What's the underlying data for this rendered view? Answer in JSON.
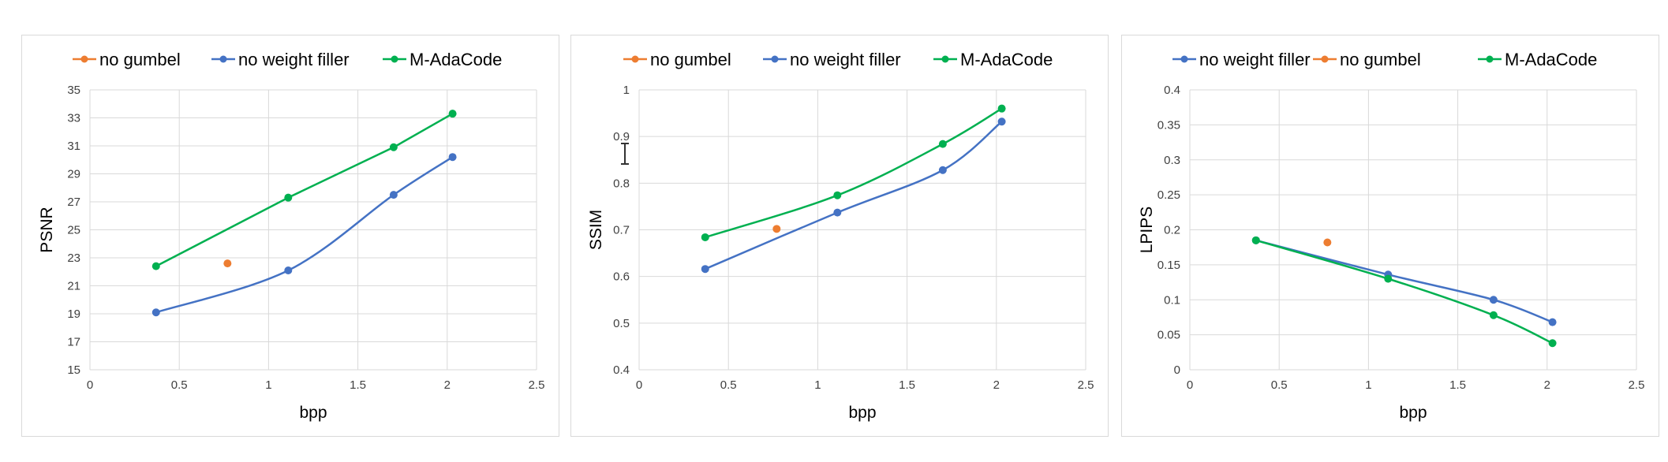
{
  "chart_data": [
    {
      "type": "line",
      "xlabel": "bpp",
      "ylabel": "PSNR",
      "xlim": [
        0,
        2.5
      ],
      "ylim": [
        15,
        35
      ],
      "xticks": [
        "0",
        "0.5",
        "1",
        "1.5",
        "2",
        "2.5"
      ],
      "yticks": [
        "15",
        "17",
        "19",
        "21",
        "23",
        "25",
        "27",
        "29",
        "31",
        "33",
        "35"
      ],
      "grid": true,
      "legend_position": "top",
      "series": [
        {
          "name": "no gumbel",
          "color": "#ED7D31",
          "smooth": false,
          "x": [
            0.77
          ],
          "y": [
            22.6
          ]
        },
        {
          "name": "no weight filler",
          "color": "#4472C4",
          "smooth": true,
          "x": [
            0.37,
            1.11,
            1.7,
            2.03
          ],
          "y": [
            19.1,
            22.1,
            27.5,
            30.2
          ]
        },
        {
          "name": "M-AdaCode",
          "color": "#00B050",
          "smooth": false,
          "x": [
            0.37,
            1.11,
            1.7,
            2.03
          ],
          "y": [
            22.4,
            27.3,
            30.9,
            33.3
          ]
        }
      ]
    },
    {
      "type": "line",
      "xlabel": "bpp",
      "ylabel": "SSIM",
      "xlim": [
        0,
        2.5
      ],
      "ylim": [
        0.4,
        1
      ],
      "xticks": [
        "0",
        "0.5",
        "1",
        "1.5",
        "2",
        "2.5"
      ],
      "yticks": [
        "0.4",
        "0.5",
        "0.6",
        "0.7",
        "0.8",
        "0.9",
        "1"
      ],
      "grid": true,
      "legend_position": "top",
      "series": [
        {
          "name": "no gumbel",
          "color": "#ED7D31",
          "smooth": false,
          "x": [
            0.77
          ],
          "y": [
            0.702
          ]
        },
        {
          "name": "no weight filler",
          "color": "#4472C4",
          "smooth": true,
          "x": [
            0.37,
            1.11,
            1.7,
            2.03
          ],
          "y": [
            0.616,
            0.737,
            0.828,
            0.932
          ]
        },
        {
          "name": "M-AdaCode",
          "color": "#00B050",
          "smooth": true,
          "x": [
            0.37,
            1.11,
            1.7,
            2.03
          ],
          "y": [
            0.684,
            0.774,
            0.884,
            0.96
          ]
        }
      ]
    },
    {
      "type": "line",
      "xlabel": "bpp",
      "ylabel": "LPIPS",
      "xlim": [
        0,
        2.5
      ],
      "ylim": [
        0,
        0.4
      ],
      "xticks": [
        "0",
        "0.5",
        "1",
        "1.5",
        "2",
        "2.5"
      ],
      "yticks": [
        "0",
        "0.05",
        "0.1",
        "0.15",
        "0.2",
        "0.25",
        "0.3",
        "0.35",
        "0.4"
      ],
      "grid": true,
      "legend_position": "top",
      "series": [
        {
          "name": "no weight filler",
          "color": "#4472C4",
          "smooth": true,
          "x": [
            0.37,
            1.11,
            1.7,
            2.03
          ],
          "y": [
            0.185,
            0.136,
            0.1,
            0.068
          ]
        },
        {
          "name": "no gumbel",
          "color": "#ED7D31",
          "smooth": false,
          "x": [
            0.77
          ],
          "y": [
            0.182
          ]
        },
        {
          "name": "M-AdaCode",
          "color": "#00B050",
          "smooth": true,
          "x": [
            0.37,
            1.11,
            1.7,
            2.03
          ],
          "y": [
            0.185,
            0.13,
            0.078,
            0.038
          ]
        }
      ]
    }
  ]
}
